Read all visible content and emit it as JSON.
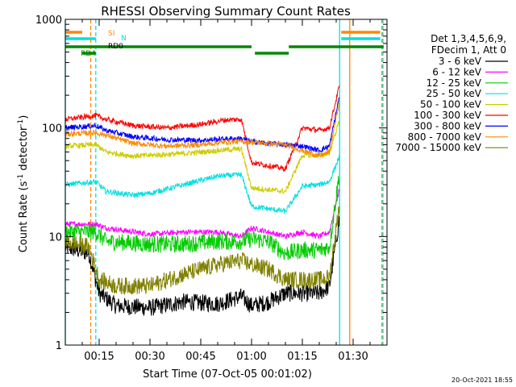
{
  "chart_data": {
    "type": "line",
    "title": "RHESSI Observing Summary Count Rates",
    "xlabel": "Start Time (07-Oct-05 00:01:02)",
    "ylabel_main": "Count Rate (s",
    "ylabel_sup1": "-1",
    "ylabel_mid": " detector",
    "ylabel_sup2": "-1",
    "ylabel_end": ")",
    "y_scale": "log",
    "ylim": [
      1,
      1000
    ],
    "xlim_min": [
      5,
      100
    ],
    "x_ticks": [
      {
        "min": 15,
        "label": "00:15"
      },
      {
        "min": 30,
        "label": "00:30"
      },
      {
        "min": 45,
        "label": "00:45"
      },
      {
        "min": 60,
        "label": "01:00"
      },
      {
        "min": 75,
        "label": "01:15"
      },
      {
        "min": 90,
        "label": "01:30"
      }
    ],
    "y_ticks": [
      {
        "val": 1,
        "label": "1"
      },
      {
        "val": 10,
        "label": "10"
      },
      {
        "val": 100,
        "label": "100"
      },
      {
        "val": 1000,
        "label": "1000"
      }
    ],
    "legend_header": [
      "Det 1,3,4,5,6,9,",
      "FDecim 1, Att 0"
    ],
    "series": [
      {
        "name": "3 - 6 keV",
        "color": "#000000",
        "values": [
          [
            5,
            8
          ],
          [
            12,
            7
          ],
          [
            15,
            3
          ],
          [
            20,
            2.3
          ],
          [
            30,
            2.2
          ],
          [
            40,
            2.5
          ],
          [
            50,
            2.4
          ],
          [
            57,
            2.8
          ],
          [
            60,
            2.3
          ],
          [
            65,
            2.5
          ],
          [
            70,
            3
          ],
          [
            75,
            3
          ],
          [
            80,
            3
          ],
          [
            83,
            3.5
          ],
          [
            86,
            15
          ]
        ]
      },
      {
        "name": "6 - 12 keV",
        "color": "#ff00ff",
        "values": [
          [
            5,
            13
          ],
          [
            14,
            13
          ],
          [
            17,
            12
          ],
          [
            30,
            10.5
          ],
          [
            40,
            11
          ],
          [
            50,
            11
          ],
          [
            57,
            10
          ],
          [
            60,
            12
          ],
          [
            65,
            11
          ],
          [
            70,
            10
          ],
          [
            75,
            11
          ],
          [
            80,
            10
          ],
          [
            83,
            11
          ],
          [
            86,
            28
          ]
        ]
      },
      {
        "name": "12 - 25 keV",
        "color": "#00cc00",
        "values": [
          [
            5,
            11
          ],
          [
            14,
            11
          ],
          [
            17,
            9
          ],
          [
            30,
            8.5
          ],
          [
            40,
            8.5
          ],
          [
            50,
            9
          ],
          [
            57,
            9
          ],
          [
            60,
            9.5
          ],
          [
            65,
            9
          ],
          [
            70,
            7
          ],
          [
            75,
            7.5
          ],
          [
            80,
            7.5
          ],
          [
            83,
            8
          ],
          [
            86,
            40
          ]
        ]
      },
      {
        "name": "25 - 50 keV",
        "color": "#00e0e0",
        "values": [
          [
            5,
            30
          ],
          [
            14,
            32
          ],
          [
            17,
            26
          ],
          [
            25,
            24
          ],
          [
            30,
            25
          ],
          [
            40,
            30
          ],
          [
            50,
            36
          ],
          [
            57,
            37
          ],
          [
            60,
            19
          ],
          [
            65,
            18
          ],
          [
            70,
            17
          ],
          [
            75,
            29
          ],
          [
            80,
            30
          ],
          [
            83,
            32
          ],
          [
            86,
            55
          ]
        ]
      },
      {
        "name": "50 - 100 keV",
        "color": "#cccc00",
        "values": [
          [
            5,
            68
          ],
          [
            14,
            70
          ],
          [
            17,
            60
          ],
          [
            25,
            55
          ],
          [
            30,
            56
          ],
          [
            40,
            58
          ],
          [
            50,
            62
          ],
          [
            57,
            64
          ],
          [
            60,
            28
          ],
          [
            65,
            27
          ],
          [
            70,
            26
          ],
          [
            75,
            56
          ],
          [
            80,
            56
          ],
          [
            83,
            59
          ],
          [
            86,
            120
          ]
        ]
      },
      {
        "name": "100 - 300 keV",
        "color": "#ff0000",
        "values": [
          [
            5,
            120
          ],
          [
            14,
            130
          ],
          [
            17,
            120
          ],
          [
            25,
            105
          ],
          [
            35,
            100
          ],
          [
            45,
            108
          ],
          [
            52,
            118
          ],
          [
            57,
            120
          ],
          [
            60,
            48
          ],
          [
            65,
            45
          ],
          [
            70,
            42
          ],
          [
            75,
            100
          ],
          [
            80,
            95
          ],
          [
            83,
            100
          ],
          [
            86,
            250
          ]
        ]
      },
      {
        "name": "300 - 800 keV",
        "color": "#0000ff",
        "values": [
          [
            5,
            100
          ],
          [
            14,
            105
          ],
          [
            17,
            95
          ],
          [
            25,
            83
          ],
          [
            35,
            78
          ],
          [
            45,
            77
          ],
          [
            52,
            79
          ],
          [
            57,
            80
          ],
          [
            60,
            75
          ],
          [
            65,
            72
          ],
          [
            70,
            70
          ],
          [
            75,
            68
          ],
          [
            80,
            62
          ],
          [
            83,
            68
          ],
          [
            86,
            200
          ]
        ]
      },
      {
        "name": "800 - 7000 keV",
        "color": "#ff8800",
        "values": [
          [
            5,
            88
          ],
          [
            14,
            90
          ],
          [
            17,
            86
          ],
          [
            25,
            72
          ],
          [
            35,
            68
          ],
          [
            45,
            70
          ],
          [
            52,
            74
          ],
          [
            57,
            75
          ],
          [
            60,
            74
          ],
          [
            65,
            72
          ],
          [
            70,
            70
          ],
          [
            75,
            62
          ],
          [
            80,
            55
          ],
          [
            83,
            60
          ],
          [
            86,
            180
          ]
        ]
      },
      {
        "name": "7000 - 15000 keV",
        "color": "#808000",
        "values": [
          [
            5,
            9
          ],
          [
            12,
            8
          ],
          [
            15,
            4
          ],
          [
            20,
            3.5
          ],
          [
            30,
            3.5
          ],
          [
            40,
            4.5
          ],
          [
            50,
            5.5
          ],
          [
            57,
            6
          ],
          [
            60,
            5.5
          ],
          [
            65,
            5
          ],
          [
            70,
            4
          ],
          [
            75,
            4
          ],
          [
            80,
            4
          ],
          [
            83,
            4.2
          ],
          [
            86,
            20
          ]
        ]
      }
    ],
    "state_bars": [
      {
        "label": "SI",
        "label_color": "#ff8800",
        "color": "#ff8800",
        "segments": [
          [
            5,
            10
          ],
          [
            86.5,
            98
          ]
        ]
      },
      {
        "label": "N",
        "label_color": "#00e0e0",
        "color": "#00e0e0",
        "segments": [
          [
            5,
            14
          ],
          [
            86.5,
            98
          ]
        ]
      },
      {
        "label": "RD0",
        "label_color": "#000000",
        "color": "#008800",
        "segments": [
          [
            5,
            60
          ],
          [
            71,
            99
          ]
        ]
      },
      {
        "label": "RD4",
        "label_color": "#008800",
        "color": "#008800",
        "segments": [
          [
            10,
            14
          ],
          [
            61,
            71
          ]
        ]
      }
    ],
    "vlines": [
      {
        "min": 5,
        "color": "#00e0e0",
        "dash": false
      },
      {
        "min": 12.5,
        "color": "#ff8800",
        "dash": true
      },
      {
        "min": 14,
        "color": "#00e0e0",
        "dash": true
      },
      {
        "min": 86,
        "color": "#00e0e0",
        "dash": false
      },
      {
        "min": 89,
        "color": "#ff8800",
        "dash": false
      },
      {
        "min": 98.5,
        "color": "#ff8800",
        "dash": true
      },
      {
        "min": 98.8,
        "color": "#00e0e0",
        "dash": true
      }
    ],
    "footer_date": "20-Oct-2021 18:55",
    "grid": false
  }
}
